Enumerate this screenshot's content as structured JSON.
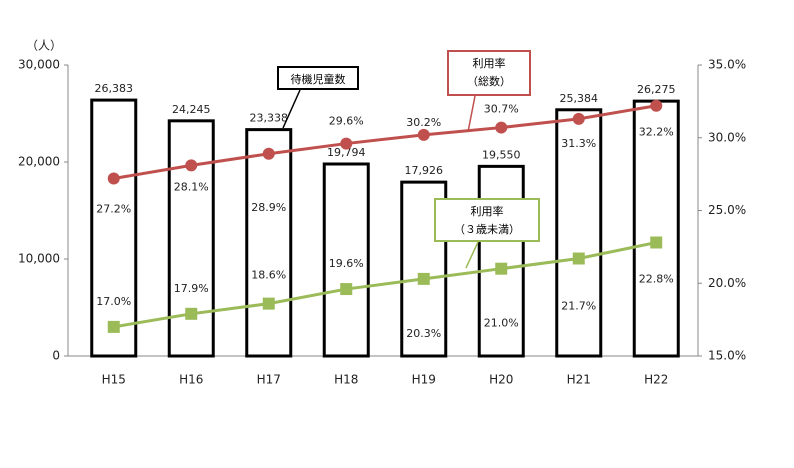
{
  "chart_data": {
    "type": "bar",
    "y_label": "（人）",
    "categories": [
      "H15",
      "H16",
      "H17",
      "H18",
      "H19",
      "H20",
      "H21",
      "H22"
    ],
    "series": [
      {
        "name": "待機児童数",
        "type": "bar",
        "color": "#000000",
        "values": [
          26383,
          24245,
          23338,
          19794,
          17926,
          19550,
          25384,
          26275
        ],
        "value_labels": [
          "26,383",
          "24,245",
          "23,338",
          "19,794",
          "17,926",
          "19,550",
          "25,384",
          "26,275"
        ]
      },
      {
        "name": "利用率\n（総数）",
        "type": "line",
        "axis": "y2",
        "color": "#c0504d",
        "values": [
          27.2,
          28.1,
          28.9,
          29.6,
          30.2,
          30.7,
          31.3,
          32.2
        ],
        "value_labels": [
          "27.2%",
          "28.1%",
          "28.9%",
          "29.6%",
          "30.2%",
          "30.7%",
          "31.3%",
          "32.2%"
        ]
      },
      {
        "name": "利用率\n（３歳未満）",
        "type": "line",
        "axis": "y2",
        "color": "#9bbb59",
        "values": [
          17.0,
          17.9,
          18.6,
          19.6,
          20.3,
          21.0,
          21.7,
          22.8
        ],
        "value_labels": [
          "17.0%",
          "17.9%",
          "18.6%",
          "19.6%",
          "20.3%",
          "21.0%",
          "21.7%",
          "22.8%"
        ]
      }
    ],
    "ylim": [
      0,
      30000
    ],
    "yticks": [
      0,
      {
        "value": 10000,
        "label": "10,000"
      },
      {
        "value": 20000,
        "label": "20,000"
      },
      {
        "value": 30000,
        "label": "30,000"
      }
    ],
    "y2lim": [
      15,
      35
    ],
    "y2ticks": [
      {
        "value": 15,
        "label": "15.0%"
      },
      {
        "value": 20,
        "label": "20.0%"
      },
      {
        "value": 25,
        "label": "25.0%"
      },
      {
        "value": 30,
        "label": "30.0%"
      },
      {
        "value": 35,
        "label": "35.0%"
      }
    ]
  }
}
